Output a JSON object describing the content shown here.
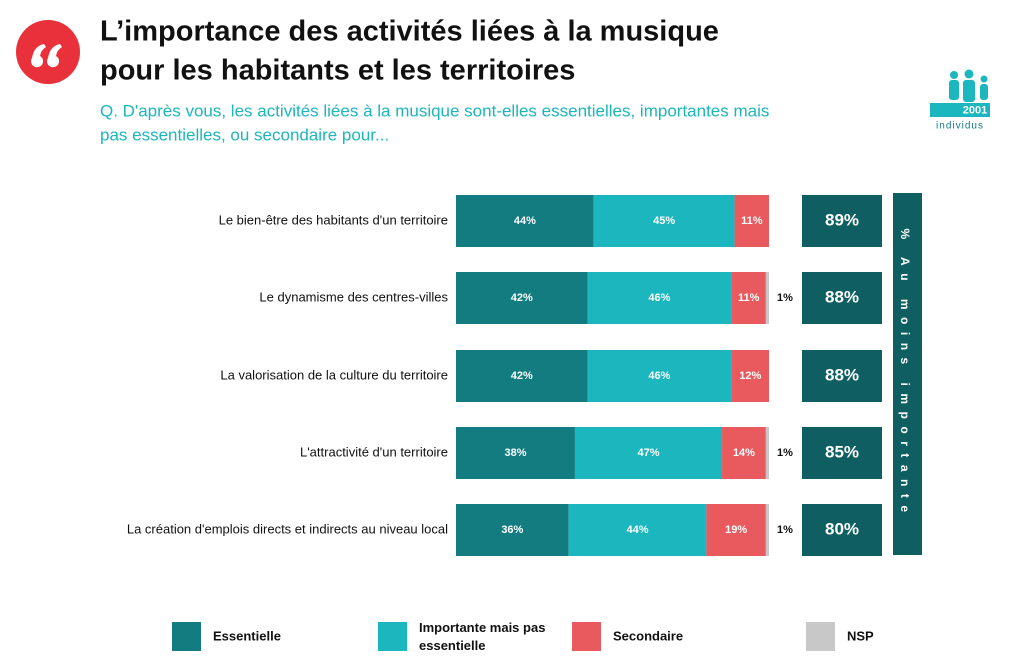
{
  "chart_data": {
    "type": "stacked-bar-horizontal",
    "title_line1": "L’importance des activités liées à la musique",
    "title_line2": "pour les habitants et les territoires",
    "subtitle_line1": "Q. D'après vous, les activités liées à la musique sont-elles essentielles, importantes mais",
    "subtitle_line2": "pas essentielles, ou secondaire pour...",
    "sample_count": "2001",
    "sample_unit": "individus",
    "xlim": [
      0,
      100
    ],
    "categories": [
      "Le bien-être des habitants d'un territoire",
      "Le dynamisme des centres-villes",
      "La valorisation de la culture du territoire",
      "L'attractivité d'un territoire",
      "La création d'emplois directs et indirects au niveau local"
    ],
    "series": [
      {
        "name": "Essentielle",
        "color": "#137c80",
        "values": [
          44,
          42,
          42,
          38,
          36
        ],
        "value_labels": [
          "44%",
          "42%",
          "42%",
          "38%",
          "36%"
        ]
      },
      {
        "name": "Importante mais pas essentielle",
        "color": "#1cb6be",
        "values": [
          45,
          46,
          46,
          47,
          44
        ],
        "value_labels": [
          "45%",
          "46%",
          "46%",
          "47%",
          "44%"
        ]
      },
      {
        "name": "Secondaire",
        "color": "#e85a5d",
        "values": [
          11,
          11,
          12,
          14,
          19
        ],
        "value_labels": [
          "11%",
          "11%",
          "12%",
          "14%",
          "19%"
        ]
      },
      {
        "name": "NSP",
        "color": "#c8c8c8",
        "values": [
          null,
          1,
          null,
          1,
          1
        ],
        "value_labels": [
          null,
          "1%",
          null,
          "1%",
          "1%"
        ]
      }
    ],
    "totals": {
      "values": [
        89,
        88,
        88,
        85,
        80
      ],
      "value_labels": [
        "89%",
        "88%",
        "88%",
        "85%",
        "80%"
      ],
      "color": "#0e5e62"
    },
    "side_label": "% Au moins importante"
  }
}
